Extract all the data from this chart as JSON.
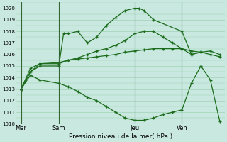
{
  "xlabel": "Pression niveau de la mer( hPa )",
  "bg_color": "#c8e8e0",
  "line_color": "#1a6b1a",
  "ylim": [
    1010,
    1020.5
  ],
  "yticks": [
    1010,
    1011,
    1012,
    1013,
    1014,
    1015,
    1016,
    1017,
    1018,
    1019,
    1020
  ],
  "xtick_labels": [
    "Mer",
    "Sam",
    "Jeu",
    "Ven"
  ],
  "xtick_positions": [
    0,
    4,
    12,
    17
  ],
  "xlim": [
    -0.5,
    21.5
  ],
  "vlines": [
    0,
    4,
    12,
    17
  ],
  "line1_x": [
    0,
    1,
    2,
    4,
    4.5,
    5,
    6,
    7,
    8,
    9,
    10,
    11,
    12,
    12.5,
    13,
    14,
    17,
    18,
    19
  ],
  "line1_y": [
    1013.0,
    1014.5,
    1015.0,
    1015.0,
    1017.8,
    1017.8,
    1018.0,
    1017.0,
    1017.5,
    1018.5,
    1019.2,
    1019.8,
    1020.0,
    1020.0,
    1019.8,
    1019.0,
    1018.0,
    1016.0,
    1016.2
  ],
  "line2_x": [
    0,
    1,
    2,
    4,
    5,
    6,
    7,
    8,
    9,
    10,
    11,
    12,
    13,
    14,
    15,
    16,
    17,
    18,
    19,
    20,
    21
  ],
  "line2_y": [
    1013.0,
    1014.5,
    1015.2,
    1015.2,
    1015.5,
    1015.7,
    1016.0,
    1016.3,
    1016.5,
    1016.8,
    1017.2,
    1017.8,
    1018.0,
    1018.0,
    1017.5,
    1017.0,
    1016.5,
    1016.0,
    1016.2,
    1016.3,
    1016.0
  ],
  "line3_x": [
    0,
    1,
    2,
    4,
    5,
    6,
    7,
    8,
    9,
    10,
    11,
    12,
    13,
    14,
    15,
    16,
    17,
    18,
    19,
    20,
    21
  ],
  "line3_y": [
    1013.0,
    1014.8,
    1015.2,
    1015.3,
    1015.5,
    1015.6,
    1015.7,
    1015.8,
    1015.9,
    1016.0,
    1016.2,
    1016.3,
    1016.4,
    1016.5,
    1016.5,
    1016.5,
    1016.5,
    1016.3,
    1016.2,
    1016.0,
    1015.8
  ],
  "line4_x": [
    0,
    1,
    2,
    4,
    5,
    6,
    7,
    8,
    9,
    10,
    11,
    12,
    13,
    14,
    15,
    16,
    17,
    18,
    19,
    20,
    21
  ],
  "line4_y": [
    1013.0,
    1014.2,
    1013.8,
    1013.5,
    1013.2,
    1012.8,
    1012.3,
    1012.0,
    1011.5,
    1011.0,
    1010.5,
    1010.3,
    1010.3,
    1010.5,
    1010.8,
    1011.0,
    1011.2,
    1013.5,
    1015.0,
    1013.8,
    1010.2
  ]
}
